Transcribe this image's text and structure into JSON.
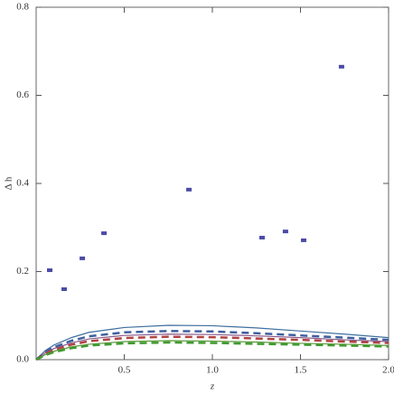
{
  "chart_data": {
    "type": "scatter",
    "xlabel": "z",
    "ylabel": "Δ h",
    "xlim": [
      0,
      2
    ],
    "ylim": [
      0,
      0.8
    ],
    "xticks": [
      0.5,
      {
        "value": 1.0,
        "label": "1.0"
      },
      1.5,
      {
        "value": 2.0,
        "label": "2.0"
      }
    ],
    "yticks": [
      {
        "value": 0,
        "label": "0.0"
      },
      0.2,
      0.4,
      0.6,
      0.8
    ],
    "series": [
      {
        "type": "scatter",
        "color": "#4b4ba6",
        "x": [
          0.077,
          0.159,
          0.262,
          0.385,
          0.867,
          1.282,
          1.415,
          1.518,
          1.733
        ],
        "values": [
          0.203,
          0.16,
          0.23,
          0.287,
          0.386,
          0.277,
          0.291,
          0.271,
          0.665
        ]
      },
      {
        "type": "line",
        "color": "#3e6f9e",
        "dash": false,
        "x": [
          0,
          0.05,
          0.1,
          0.2,
          0.3,
          0.5,
          0.75,
          1.0,
          1.25,
          1.5,
          1.75,
          2.0
        ],
        "values": [
          0,
          0.02,
          0.033,
          0.05,
          0.062,
          0.073,
          0.078,
          0.077,
          0.072,
          0.065,
          0.058,
          0.05
        ]
      },
      {
        "type": "line",
        "color": "#3e5fa0",
        "dash": true,
        "x": [
          0,
          0.05,
          0.1,
          0.2,
          0.3,
          0.5,
          0.75,
          1.0,
          1.25,
          1.5,
          1.75,
          2.0
        ],
        "values": [
          0,
          0.017,
          0.028,
          0.043,
          0.053,
          0.062,
          0.065,
          0.064,
          0.06,
          0.055,
          0.05,
          0.045
        ]
      },
      {
        "type": "line",
        "color": "#8a5a8a",
        "dash": false,
        "x": [
          0,
          0.05,
          0.1,
          0.2,
          0.3,
          0.5,
          0.75,
          1.0,
          1.25,
          1.5,
          1.75,
          2.0
        ],
        "values": [
          0,
          0.015,
          0.025,
          0.038,
          0.047,
          0.055,
          0.058,
          0.057,
          0.054,
          0.05,
          0.045,
          0.041
        ]
      },
      {
        "type": "line",
        "color": "#b04444",
        "dash": true,
        "x": [
          0,
          0.05,
          0.1,
          0.2,
          0.3,
          0.5,
          0.75,
          1.0,
          1.25,
          1.5,
          1.75,
          2.0
        ],
        "values": [
          0,
          0.013,
          0.022,
          0.034,
          0.042,
          0.049,
          0.052,
          0.051,
          0.048,
          0.045,
          0.041,
          0.038
        ]
      },
      {
        "type": "line",
        "color": "#5a9a3a",
        "dash": false,
        "x": [
          0,
          0.05,
          0.1,
          0.2,
          0.3,
          0.5,
          0.75,
          1.0,
          1.25,
          1.5,
          1.75,
          2.0
        ],
        "values": [
          0,
          0.011,
          0.019,
          0.029,
          0.035,
          0.041,
          0.043,
          0.042,
          0.04,
          0.037,
          0.035,
          0.032
        ]
      },
      {
        "type": "line",
        "color": "#3f9a2f",
        "dash": true,
        "x": [
          0,
          0.05,
          0.1,
          0.2,
          0.3,
          0.5,
          0.75,
          1.0,
          1.25,
          1.5,
          1.75,
          2.0
        ],
        "values": [
          0,
          0.01,
          0.017,
          0.026,
          0.032,
          0.037,
          0.039,
          0.038,
          0.036,
          0.034,
          0.032,
          0.03
        ]
      }
    ]
  }
}
